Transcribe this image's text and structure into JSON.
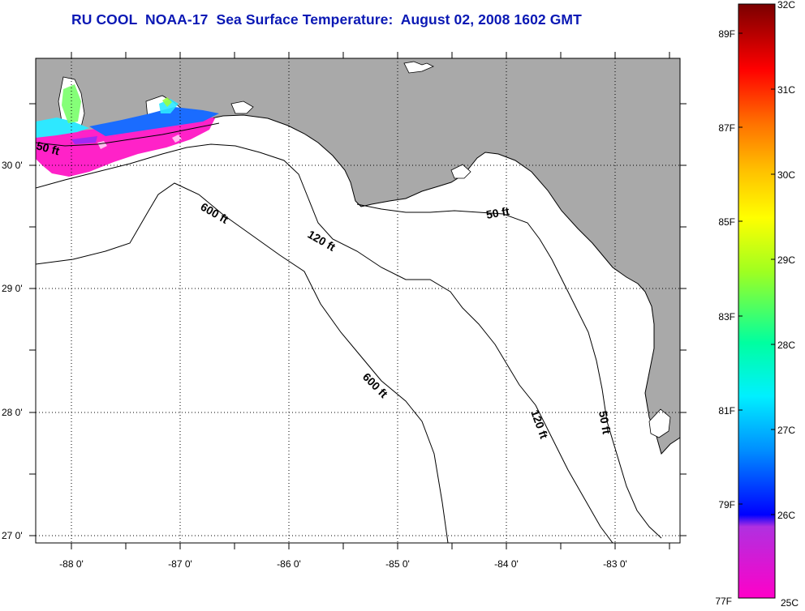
{
  "title": "RU COOL  NOAA-17  Sea Surface Temperature:  August 02, 2008 1602 GMT",
  "colors": {
    "land": "#a9a9a9",
    "water": "#ffffff",
    "title": "#0a18b4",
    "coast": "#000000"
  },
  "map": {
    "lon_labels": [
      "-88 0'",
      "-87 0'",
      "-86 0'",
      "-85 0'",
      "-84 0'",
      "-83 0'"
    ],
    "lat_labels": [
      "30 0'",
      "29 0'",
      "28 0'",
      "27 0'"
    ],
    "contour_labels": [
      {
        "text": "50 ft",
        "line": "50ft-west"
      },
      {
        "text": "600 ft",
        "line": "600ft"
      },
      {
        "text": "120 ft",
        "line": "120ft"
      },
      {
        "text": "50 ft",
        "line": "50ft-east"
      },
      {
        "text": "600 ft",
        "line": "600ft"
      },
      {
        "text": "120 ft",
        "line": "120ft"
      },
      {
        "text": "50 ft",
        "line": "50ft-east"
      }
    ]
  },
  "colorbar": {
    "celsius_labels": [
      "32C",
      "31C",
      "30C",
      "29C",
      "28C",
      "27C",
      "26C",
      "25C"
    ],
    "fahrenheit_labels": [
      "89F",
      "87F",
      "85F",
      "83F",
      "81F",
      "79F",
      "77F"
    ],
    "gradient_colors": [
      "#ff00c8",
      "#a034e0",
      "#4a3ad8",
      "#0000ff",
      "#0090ff",
      "#00f0ff",
      "#00ffa0",
      "#60ff40",
      "#ffff00",
      "#ffc000",
      "#ff8000",
      "#ff2000",
      "#ff0000",
      "#b00000",
      "#800000"
    ]
  }
}
